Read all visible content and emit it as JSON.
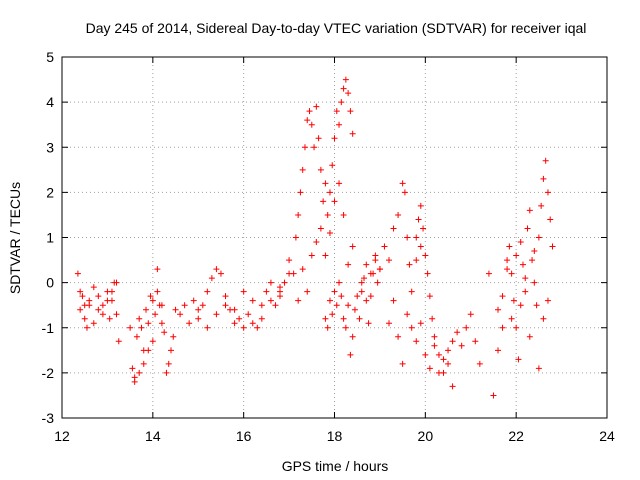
{
  "chart_data": {
    "type": "scatter",
    "title": "Day 245 of 2014, Sidereal Day-to-day VTEC variation (SDTVAR) for receiver iqal",
    "xlabel": "GPS time / hours",
    "ylabel": "SDTVAR / TECUs",
    "xlim": [
      12,
      24
    ],
    "ylim": [
      -3,
      5
    ],
    "xticks": [
      "12",
      "14",
      "16",
      "18",
      "20",
      "22",
      "24"
    ],
    "yticks": [
      "-3",
      "-2",
      "-1",
      "0",
      "1",
      "2",
      "3",
      "4",
      "5"
    ],
    "grid": true,
    "marker": "+",
    "color": "#ff0000",
    "series": [
      {
        "name": "SDTVAR",
        "x": [
          12.35,
          12.4,
          12.45,
          12.5,
          12.55,
          12.6,
          12.7,
          12.8,
          12.9,
          13.0,
          13.05,
          13.1,
          13.15,
          13.2,
          13.25,
          12.4,
          12.5,
          12.6,
          12.7,
          12.8,
          12.9,
          13.0,
          13.1,
          13.2,
          13.5,
          13.55,
          13.6,
          13.65,
          13.7,
          13.75,
          13.8,
          13.85,
          13.9,
          13.95,
          14.0,
          14.05,
          14.1,
          14.15,
          14.2,
          14.25,
          14.3,
          14.35,
          14.4,
          14.45,
          14.5,
          14.6,
          14.7,
          14.8,
          14.9,
          15.0,
          13.6,
          13.7,
          13.8,
          13.9,
          14.0,
          14.1,
          14.2,
          15.0,
          15.1,
          15.2,
          15.3,
          15.4,
          15.5,
          15.6,
          15.7,
          15.8,
          15.9,
          16.0,
          16.1,
          16.2,
          16.3,
          16.4,
          16.5,
          16.6,
          16.7,
          16.8,
          15.2,
          15.4,
          15.6,
          15.8,
          16.0,
          16.2,
          16.4,
          16.6,
          16.8,
          17.0,
          16.8,
          16.9,
          17.0,
          17.1,
          17.15,
          17.2,
          17.25,
          17.3,
          17.35,
          17.4,
          17.45,
          17.5,
          17.55,
          17.6,
          17.65,
          17.7,
          17.75,
          17.8,
          17.85,
          17.9,
          17.95,
          18.0,
          18.05,
          18.1,
          18.15,
          18.2,
          18.25,
          18.3,
          18.35,
          18.4,
          17.2,
          17.3,
          17.4,
          17.5,
          17.6,
          17.7,
          17.8,
          17.9,
          18.0,
          18.1,
          18.2,
          18.3,
          18.4,
          17.8,
          17.85,
          17.9,
          17.95,
          18.0,
          18.05,
          18.1,
          18.15,
          18.2,
          18.25,
          18.3,
          18.35,
          18.4,
          18.45,
          18.5,
          18.55,
          18.6,
          18.65,
          18.7,
          18.75,
          18.8,
          18.85,
          18.9,
          18.95,
          19.0,
          18.6,
          18.7,
          18.8,
          18.9,
          19.0,
          19.1,
          19.2,
          19.3,
          19.4,
          19.5,
          19.55,
          19.6,
          19.65,
          19.7,
          19.8,
          19.9,
          19.2,
          19.3,
          19.4,
          19.5,
          19.6,
          19.7,
          19.8,
          19.9,
          20.0,
          20.1,
          20.2,
          20.3,
          20.4,
          20.5,
          20.6,
          19.8,
          19.85,
          19.9,
          19.95,
          20.0,
          20.05,
          20.1,
          20.15,
          20.2,
          20.3,
          20.4,
          20.5,
          20.6,
          20.7,
          20.8,
          20.9,
          21.0,
          21.1,
          21.2,
          21.4,
          21.5,
          21.6,
          21.7,
          21.6,
          21.7,
          21.8,
          21.85,
          21.9,
          21.95,
          22.0,
          22.05,
          22.1,
          22.15,
          22.2,
          22.25,
          22.3,
          22.35,
          22.4,
          22.45,
          22.5,
          22.55,
          22.6,
          22.65,
          22.7,
          22.75,
          22.8,
          21.8,
          21.9,
          22.0,
          22.1,
          22.2,
          22.3,
          22.4,
          22.5,
          22.6,
          22.7
        ],
        "y": [
          0.2,
          -0.6,
          -0.3,
          -0.8,
          -1.0,
          -0.5,
          -0.9,
          -0.6,
          -0.7,
          -0.4,
          -0.8,
          -0.2,
          0.0,
          -0.7,
          -1.3,
          -0.2,
          -0.5,
          -0.4,
          -0.1,
          -0.3,
          -0.5,
          -0.2,
          -0.4,
          0.0,
          -1.0,
          -1.9,
          -2.1,
          -1.2,
          -0.8,
          -1.0,
          -1.5,
          -0.6,
          -0.9,
          -0.3,
          -0.4,
          -0.7,
          -0.2,
          -0.5,
          -0.9,
          -1.1,
          -2.0,
          -1.8,
          -1.5,
          -1.2,
          -0.6,
          -0.7,
          -0.5,
          -0.9,
          -0.4,
          -0.6,
          -2.2,
          -2.0,
          -1.8,
          -1.5,
          -1.3,
          0.3,
          -0.5,
          -0.8,
          -0.5,
          -0.2,
          0.1,
          0.3,
          0.2,
          -0.3,
          -0.6,
          -0.9,
          -0.8,
          -1.0,
          -0.7,
          -0.9,
          -1.0,
          -0.5,
          -0.2,
          0.0,
          -0.5,
          -0.3,
          -1.0,
          -0.7,
          -0.5,
          -0.6,
          -0.2,
          -0.4,
          -0.8,
          -0.4,
          -0.1,
          0.2,
          -0.2,
          0.0,
          0.5,
          0.2,
          1.0,
          1.5,
          2.0,
          2.5,
          3.0,
          3.6,
          3.8,
          3.5,
          3.0,
          3.9,
          3.2,
          2.5,
          1.8,
          2.2,
          1.5,
          2.0,
          2.6,
          3.2,
          3.8,
          3.5,
          4.0,
          4.3,
          4.5,
          4.2,
          3.8,
          3.3,
          -0.4,
          0.3,
          -0.2,
          0.6,
          0.9,
          1.2,
          0.6,
          1.1,
          1.8,
          2.2,
          1.5,
          0.4,
          0.8,
          -0.8,
          -1.0,
          -0.4,
          -0.7,
          -0.2,
          -0.5,
          0.0,
          -0.3,
          -0.8,
          -1.0,
          -0.5,
          -1.6,
          -1.2,
          -0.6,
          -0.3,
          -0.8,
          -0.2,
          0.1,
          -0.4,
          -0.9,
          -0.3,
          0.2,
          0.5,
          0.0,
          0.3,
          0.0,
          0.4,
          0.2,
          0.6,
          0.3,
          0.8,
          0.5,
          1.2,
          1.5,
          2.2,
          2.0,
          1.0,
          0.4,
          -0.2,
          0.5,
          0.8,
          -0.9,
          -0.4,
          -1.2,
          -1.8,
          -0.7,
          -1.0,
          -1.3,
          -0.9,
          -1.6,
          -1.9,
          -1.4,
          -2.0,
          -1.7,
          -1.5,
          -2.3,
          1.0,
          1.4,
          1.7,
          1.2,
          0.6,
          0.2,
          -0.3,
          -0.8,
          -1.2,
          -1.6,
          -2.0,
          -1.8,
          -1.3,
          -1.1,
          -1.4,
          -1.0,
          -0.7,
          -1.3,
          -1.8,
          0.2,
          -2.5,
          -1.5,
          -1.0,
          -0.6,
          -0.3,
          0.5,
          0.8,
          0.2,
          -0.4,
          -1.0,
          -1.7,
          0.9,
          0.4,
          -0.2,
          1.2,
          1.6,
          0.5,
          0.0,
          -0.5,
          1.0,
          1.7,
          2.3,
          2.7,
          2.0,
          1.4,
          0.8,
          0.3,
          -0.8,
          0.6,
          -0.5,
          0.1,
          -1.2,
          0.7,
          -1.9,
          -0.8,
          -0.4
        ]
      }
    ]
  }
}
